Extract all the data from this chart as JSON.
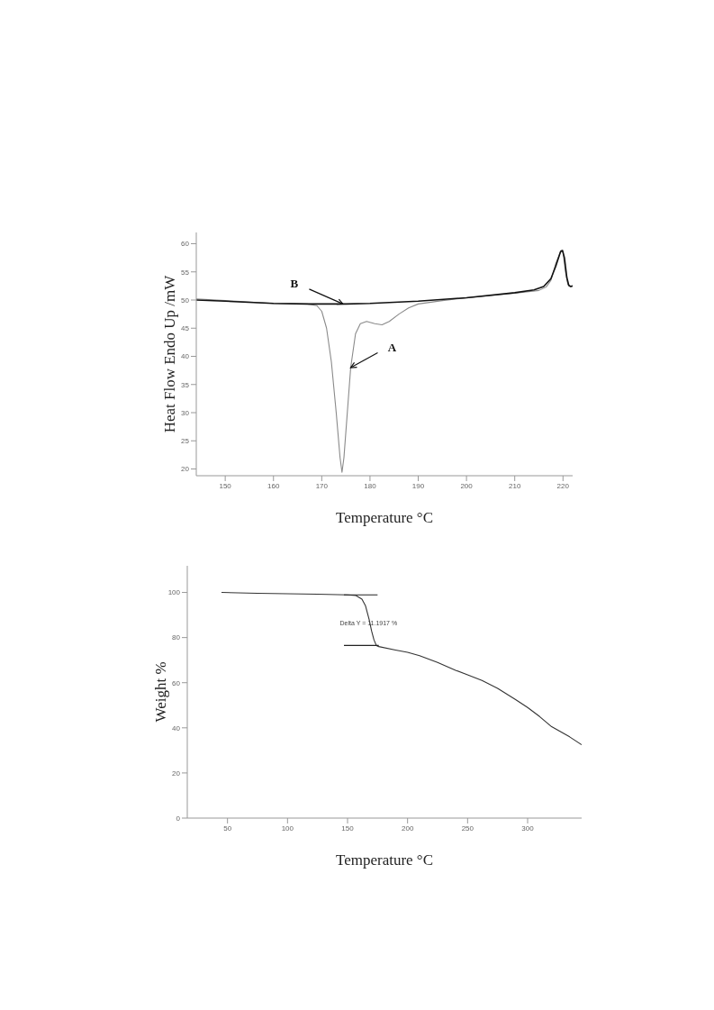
{
  "chart_data": [
    {
      "type": "line",
      "xlabel": "Temperature °C",
      "ylabel": "Heat Flow Endo Up /mW",
      "xlim": [
        144,
        222
      ],
      "ylim": [
        18.8,
        62
      ],
      "xticks": [
        150,
        160,
        170,
        180,
        190,
        200,
        210,
        220
      ],
      "yticks": [
        20,
        25,
        30,
        35,
        40,
        45,
        50,
        55,
        60
      ],
      "series": [
        {
          "color": "#8a8a8a",
          "x": [
            144,
            150,
            160,
            167,
            169,
            170,
            171,
            172,
            173,
            173.8,
            174.2,
            174.6,
            175.3,
            176,
            177,
            178,
            179.3,
            181,
            182.5,
            184,
            186,
            188,
            190,
            195,
            200,
            210,
            215,
            216.5,
            217.5,
            218.5,
            219.6,
            220,
            220.5,
            221,
            221.5,
            222
          ],
          "values": [
            50.2,
            49.9,
            49.4,
            49.3,
            49,
            48,
            45,
            39,
            30,
            22,
            19.4,
            22,
            30,
            38,
            44,
            45.8,
            46.2,
            45.8,
            45.6,
            46.2,
            47.5,
            48.6,
            49.3,
            49.9,
            50.4,
            51.2,
            51.7,
            52.3,
            53.5,
            56.5,
            58.8,
            58.5,
            55,
            52.8,
            52.4,
            52.5
          ]
        },
        {
          "color": "#111111",
          "x": [
            144,
            150,
            160,
            167,
            175,
            180,
            190,
            200,
            210,
            214,
            216,
            217.5,
            218.5,
            219.5,
            219.9,
            220.3,
            220.8,
            221.2,
            221.6,
            222
          ],
          "values": [
            50,
            49.8,
            49.4,
            49.3,
            49.3,
            49.4,
            49.8,
            50.4,
            51.3,
            51.8,
            52.4,
            53.8,
            56,
            58.6,
            58.8,
            57.5,
            54,
            52.6,
            52.4,
            52.5
          ]
        }
      ],
      "annotations": [
        {
          "text": "B",
          "x": 174.4,
          "y": 49.3
        },
        {
          "text": "A",
          "x": 176,
          "y": 38
        }
      ]
    },
    {
      "type": "line",
      "xlabel": "Temperature °C",
      "ylabel": "Weight %",
      "xlim": [
        16.5,
        345
      ],
      "ylim": [
        0,
        111.8
      ],
      "xticks": [
        50,
        100,
        150,
        200,
        250,
        300
      ],
      "yticks": [
        0,
        20,
        40,
        60,
        80,
        100
      ],
      "series": [
        {
          "color": "#333333",
          "x": [
            45,
            75,
            100,
            125,
            150,
            157,
            162,
            165,
            168,
            170,
            172,
            174,
            176,
            190,
            200,
            210,
            225,
            240,
            250,
            262,
            275,
            290,
            300,
            310,
            320,
            335,
            345
          ],
          "values": [
            100,
            99.6,
            99.4,
            99.2,
            98.9,
            98.6,
            97,
            94,
            88,
            83,
            79,
            76.5,
            76,
            74.5,
            73.5,
            72,
            69,
            65.5,
            63.5,
            61,
            57.5,
            52.5,
            49,
            45,
            40.5,
            36,
            32.5
          ]
        },
        {
          "color": "#222222",
          "x": [
            147,
            175
          ],
          "values": [
            98.9,
            98.9
          ]
        },
        {
          "color": "#222222",
          "x": [
            147,
            176
          ],
          "values": [
            76.5,
            76.5
          ]
        }
      ],
      "annotations": [
        "Delta Y = 11.1917 %"
      ]
    }
  ]
}
